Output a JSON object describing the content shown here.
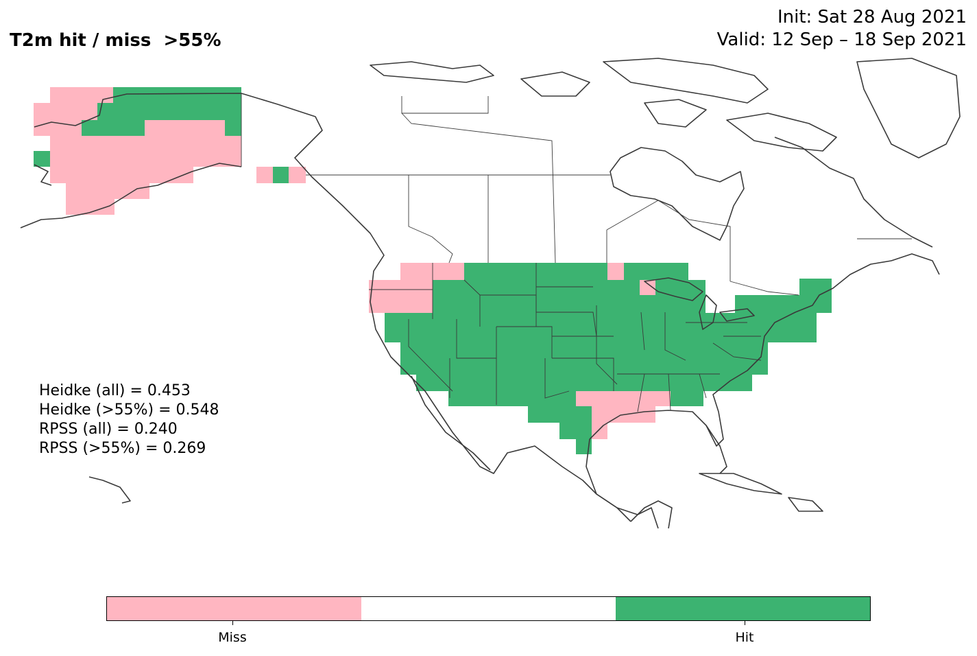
{
  "header": {
    "title": "T2m hit / miss  >55%",
    "init": "Init: Sat 28 Aug 2021",
    "valid": "Valid: 12 Sep – 18 Sep 2021"
  },
  "scores": [
    "Heidke (all) = 0.453",
    "Heidke (>55%) = 0.548",
    "RPSS (all) = 0.240",
    "RPSS (>55%) = 0.269"
  ],
  "legend": {
    "miss_label": "Miss",
    "hit_label": "Hit"
  },
  "colors": {
    "miss": "#ffb6c1",
    "neutral": "#ffffff",
    "hit": "#3cb371",
    "outline": "#3a3a3a"
  }
}
